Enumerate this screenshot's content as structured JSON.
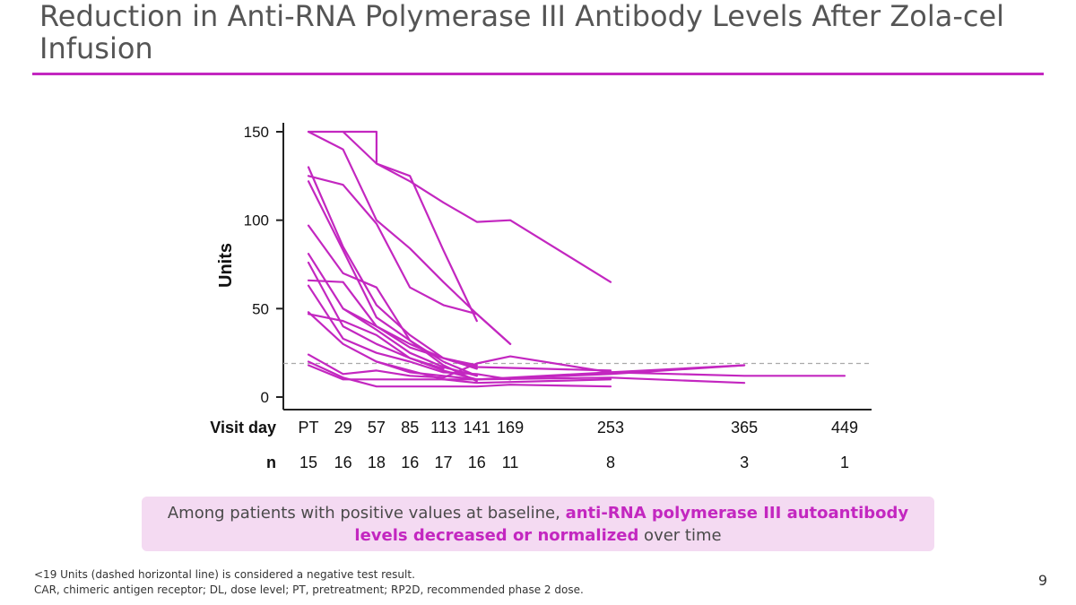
{
  "slide": {
    "title": "Reduction in Anti-RNA Polymerase III Antibody Levels After Zola-cel Infusion",
    "page_number": "9"
  },
  "callout": {
    "part1": "Among patients with positive values at baseline, ",
    "highlight": "anti-RNA polymerase III autoantibody levels decreased or normalized",
    "part2": " over time"
  },
  "footnotes": {
    "line1": "<19 Units (dashed horizontal line) is considered a negative test result.",
    "line2": "CAR, chimeric antigen receptor; DL, dose level; PT, pretreatment; RP2D, recommended phase 2 dose."
  },
  "colors": {
    "accent": "#c327c0",
    "dashed": "#aaaaaa"
  },
  "chart_data": {
    "type": "line",
    "ylabel": "Units",
    "ylim": [
      0,
      150
    ],
    "yticks": [
      0,
      50,
      100,
      150
    ],
    "row_label_x": "Visit day",
    "row_label_n": "n",
    "threshold": 19,
    "visits": [
      {
        "label": "PT",
        "day": 0,
        "n": "15"
      },
      {
        "label": "29",
        "day": 29,
        "n": "16"
      },
      {
        "label": "57",
        "day": 57,
        "n": "18"
      },
      {
        "label": "85",
        "day": 85,
        "n": "16"
      },
      {
        "label": "113",
        "day": 113,
        "n": "17"
      },
      {
        "label": "141",
        "day": 141,
        "n": "16"
      },
      {
        "label": "169",
        "day": 169,
        "n": "11"
      },
      {
        "label": "253",
        "day": 253,
        "n": "8"
      },
      {
        "label": "365",
        "day": 365,
        "n": "3"
      },
      {
        "label": "449",
        "day": 449,
        "n": "1"
      }
    ],
    "series": [
      {
        "name": "patient-1",
        "points": [
          [
            0,
            150
          ],
          [
            29,
            150
          ],
          [
            57,
            150
          ],
          [
            57,
            132
          ],
          [
            85,
            125
          ],
          [
            113,
            83
          ],
          [
            141,
            43
          ]
        ]
      },
      {
        "name": "patient-2",
        "points": [
          [
            0,
            150
          ],
          [
            29,
            140
          ],
          [
            57,
            100
          ],
          [
            85,
            84
          ],
          [
            113,
            65
          ],
          [
            141,
            47
          ],
          [
            169,
            30
          ]
        ]
      },
      {
        "name": "patient-3",
        "points": [
          [
            29,
            150
          ],
          [
            57,
            132
          ],
          [
            85,
            122
          ],
          [
            113,
            110
          ],
          [
            141,
            99
          ],
          [
            169,
            100
          ],
          [
            253,
            65
          ]
        ]
      },
      {
        "name": "patient-4",
        "points": [
          [
            0,
            125
          ],
          [
            29,
            120
          ],
          [
            57,
            98
          ],
          [
            85,
            62
          ],
          [
            113,
            52
          ],
          [
            141,
            47
          ],
          [
            169,
            30
          ]
        ]
      },
      {
        "name": "patient-5",
        "points": [
          [
            0,
            130
          ],
          [
            29,
            85
          ],
          [
            57,
            52
          ],
          [
            85,
            35
          ],
          [
            113,
            22
          ],
          [
            141,
            18
          ]
        ]
      },
      {
        "name": "patient-6",
        "points": [
          [
            0,
            122
          ],
          [
            29,
            83
          ],
          [
            57,
            45
          ],
          [
            85,
            32
          ],
          [
            113,
            20
          ],
          [
            141,
            12
          ]
        ]
      },
      {
        "name": "patient-7",
        "points": [
          [
            0,
            97
          ],
          [
            29,
            70
          ],
          [
            57,
            62
          ],
          [
            85,
            32
          ],
          [
            113,
            18
          ],
          [
            141,
            9
          ]
        ]
      },
      {
        "name": "patient-8",
        "points": [
          [
            0,
            81
          ],
          [
            29,
            50
          ],
          [
            57,
            38
          ],
          [
            85,
            25
          ],
          [
            113,
            17
          ],
          [
            141,
            12
          ]
        ]
      },
      {
        "name": "patient-9",
        "points": [
          [
            0,
            76
          ],
          [
            29,
            40
          ],
          [
            57,
            30
          ],
          [
            85,
            22
          ],
          [
            113,
            16
          ]
        ]
      },
      {
        "name": "patient-10",
        "points": [
          [
            0,
            66
          ],
          [
            29,
            65
          ],
          [
            57,
            40
          ],
          [
            85,
            28
          ],
          [
            113,
            22
          ],
          [
            141,
            16
          ]
        ]
      },
      {
        "name": "patient-11",
        "points": [
          [
            0,
            63
          ],
          [
            29,
            33
          ],
          [
            57,
            25
          ],
          [
            85,
            20
          ],
          [
            113,
            14
          ],
          [
            141,
            13
          ],
          [
            169,
            10
          ]
        ]
      },
      {
        "name": "patient-12",
        "points": [
          [
            0,
            47
          ],
          [
            29,
            43
          ],
          [
            57,
            35
          ],
          [
            85,
            22
          ],
          [
            113,
            15
          ],
          [
            141,
            10
          ],
          [
            253,
            13
          ],
          [
            365,
            18
          ]
        ]
      },
      {
        "name": "patient-13",
        "points": [
          [
            0,
            48
          ],
          [
            29,
            30
          ],
          [
            57,
            20
          ],
          [
            85,
            14
          ],
          [
            113,
            12
          ],
          [
            141,
            10
          ],
          [
            253,
            11
          ],
          [
            365,
            8
          ]
        ]
      },
      {
        "name": "patient-14",
        "points": [
          [
            0,
            24
          ],
          [
            29,
            13
          ],
          [
            57,
            15
          ],
          [
            85,
            12
          ],
          [
            113,
            11
          ],
          [
            141,
            19
          ],
          [
            169,
            23
          ],
          [
            253,
            14
          ],
          [
            365,
            12
          ],
          [
            449,
            12
          ]
        ]
      },
      {
        "name": "patient-15",
        "points": [
          [
            0,
            20
          ],
          [
            29,
            11
          ],
          [
            57,
            6
          ],
          [
            85,
            6
          ],
          [
            113,
            6
          ],
          [
            141,
            6
          ],
          [
            169,
            7
          ],
          [
            253,
            6
          ]
        ]
      },
      {
        "name": "patient-16",
        "points": [
          [
            0,
            18
          ],
          [
            29,
            10
          ],
          [
            57,
            10
          ],
          [
            85,
            10
          ],
          [
            113,
            10
          ],
          [
            141,
            10
          ],
          [
            253,
            14
          ],
          [
            365,
            18
          ]
        ]
      },
      {
        "name": "patient-17",
        "points": [
          [
            29,
            50
          ],
          [
            57,
            40
          ],
          [
            85,
            30
          ],
          [
            113,
            22
          ],
          [
            141,
            17
          ],
          [
            253,
            15
          ]
        ]
      },
      {
        "name": "patient-18",
        "points": [
          [
            57,
            20
          ],
          [
            85,
            15
          ],
          [
            113,
            10
          ],
          [
            141,
            8
          ],
          [
            253,
            10
          ]
        ]
      }
    ]
  }
}
